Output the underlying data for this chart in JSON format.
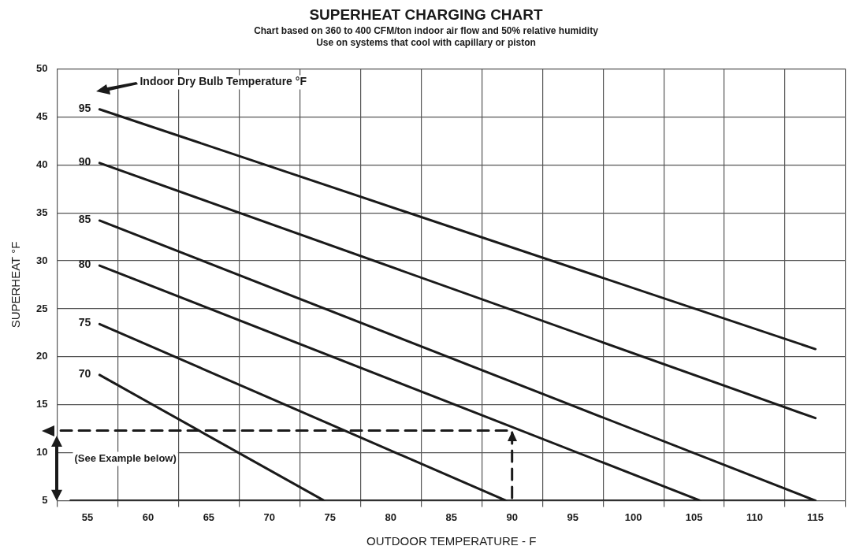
{
  "chart_data": {
    "type": "line",
    "title": "SUPERHEAT CHARGING CHART",
    "subtitle": "Chart based on 360 to 400 CFM/ton indoor air flow and 50% relative humidity\nUse on systems that cool with capillary or piston",
    "xlabel": "OUTDOOR TEMPERATURE - F",
    "ylabel": "SUPERHEAT °F",
    "annotations": [
      "Indoor Dry Bulb Temperature °F",
      "(See Example below)"
    ],
    "series": [
      {
        "name": "95",
        "color": "#1a1a1a",
        "x": [
          56,
          115
        ],
        "values": [
          45.8,
          20.8
        ]
      },
      {
        "name": "90",
        "color": "#1a1a1a",
        "x": [
          56,
          115
        ],
        "values": [
          40.2,
          13.6
        ]
      },
      {
        "name": "85",
        "color": "#1a1a1a",
        "x": [
          56,
          115
        ],
        "values": [
          34.2,
          5
        ]
      },
      {
        "name": "80",
        "color": "#1a1a1a",
        "x": [
          56,
          105.5
        ],
        "values": [
          29.5,
          5
        ]
      },
      {
        "name": "75",
        "color": "#1a1a1a",
        "x": [
          56,
          89.5
        ],
        "values": [
          23.4,
          5
        ]
      },
      {
        "name": "70",
        "color": "#1a1a1a",
        "x": [
          56,
          74.5
        ],
        "values": [
          18.1,
          5
        ]
      },
      {
        "color": "#1a1a1a",
        "x": [
          53.6,
          115
        ],
        "values": [
          5,
          5
        ]
      },
      {
        "color": "#1a1a1a",
        "x": [
          52.8,
          90,
          90
        ],
        "values": [
          12.3,
          12.3,
          5
        ],
        "line_style": "dashed"
      }
    ],
    "xlim": [
      52.5,
      117.5
    ],
    "xticks": [
      {
        "value": 52.5,
        "label": null
      },
      55,
      {
        "value": 57.5,
        "label": null
      },
      60,
      {
        "value": 62.5,
        "label": null
      },
      65,
      {
        "value": 67.5,
        "label": null
      },
      70,
      {
        "value": 72.5,
        "label": null
      },
      75,
      {
        "value": 77.5,
        "label": null
      },
      80,
      {
        "value": 82.5,
        "label": null
      },
      85,
      {
        "value": 87.5,
        "label": null
      },
      90,
      {
        "value": 92.5,
        "label": null
      },
      95,
      {
        "value": 97.5,
        "label": null
      },
      100,
      {
        "value": 102.5,
        "label": null
      },
      105,
      {
        "value": 107.5,
        "label": null
      },
      110,
      {
        "value": 112.5,
        "label": null
      },
      115,
      {
        "value": 117.5,
        "label": null
      }
    ],
    "ylim": [
      5,
      50
    ],
    "yticks": [
      5,
      10,
      15,
      20,
      25,
      30,
      35,
      40,
      45,
      50
    ],
    "grid": true,
    "legend": false,
    "marker": "none",
    "line_style": "solid"
  }
}
